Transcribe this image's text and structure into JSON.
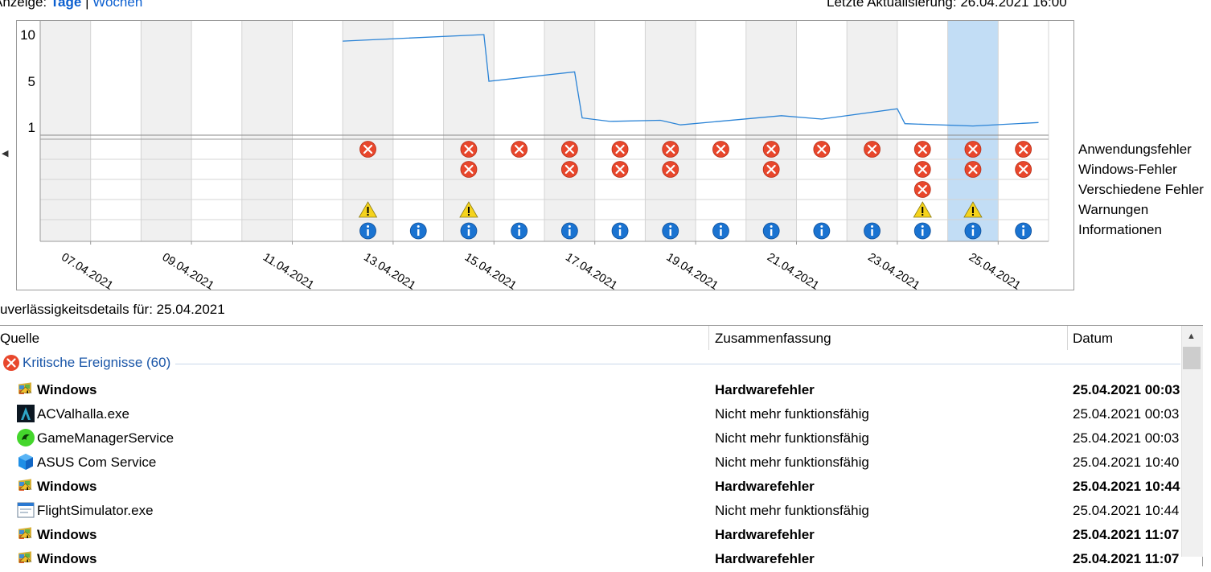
{
  "header": {
    "view_label": "Anzeige:",
    "view_days": "Tage",
    "view_sep": "|",
    "view_weeks": "Wochen",
    "last_update": "Letzte Aktualisierung: 26.04.2021 16:00"
  },
  "chart": {
    "y_ticks": [
      "10",
      "5",
      "1"
    ],
    "x_labels": [
      "07.04.2021",
      "09.04.2021",
      "11.04.2021",
      "13.04.2021",
      "15.04.2021",
      "17.04.2021",
      "19.04.2021",
      "21.04.2021",
      "23.04.2021",
      "25.04.2021"
    ],
    "day_count": 20,
    "shaded_days": [
      0,
      2,
      4,
      6,
      8,
      10,
      12,
      14,
      16
    ],
    "selected_day": 18,
    "stability_line": [
      [
        6,
        9.3
      ],
      [
        8.8,
        10.0
      ],
      [
        8.9,
        5.0
      ],
      [
        10.6,
        6.0
      ],
      [
        10.75,
        1.8
      ],
      [
        11.3,
        1.5
      ],
      [
        12.3,
        1.6
      ],
      [
        12.7,
        1.2
      ],
      [
        14.7,
        2.0
      ],
      [
        15.5,
        1.7
      ],
      [
        17,
        2.6
      ],
      [
        17.15,
        1.3
      ],
      [
        18.5,
        1.1
      ],
      [
        19.8,
        1.4
      ]
    ],
    "legend": [
      "Anwendungsfehler",
      "Windows-Fehler",
      "Verschiedene Fehler",
      "Warnungen",
      "Informationen"
    ],
    "events": {
      "app_errors": [
        6,
        8,
        9,
        10,
        11,
        12,
        13,
        14,
        15,
        16,
        17,
        18,
        19
      ],
      "windows_errors": [
        8,
        10,
        11,
        12,
        14,
        17,
        18,
        19
      ],
      "misc_errors": [
        17
      ],
      "warnings": [
        6,
        8,
        17,
        18
      ],
      "info": [
        6,
        7,
        8,
        9,
        10,
        11,
        12,
        13,
        14,
        15,
        16,
        17,
        18,
        19
      ]
    }
  },
  "details": {
    "title": "uverlässigkeitsdetails für: 25.04.2021",
    "columns": [
      "Quelle",
      "Zusammenfassung",
      "Datum"
    ],
    "group": {
      "label": "Kritische Ereignisse (60)"
    },
    "rows": [
      {
        "source": "Windows",
        "summary": "Hardwarefehler",
        "date": "25.04.2021 00:03",
        "bold": true,
        "icon": "windows-flag-icon"
      },
      {
        "source": "ACValhalla.exe",
        "summary": "Nicht mehr funktionsfähig",
        "date": "25.04.2021 00:03",
        "bold": false,
        "icon": "acvalhalla-icon"
      },
      {
        "source": "GameManagerService",
        "summary": "Nicht mehr funktionsfähig",
        "date": "25.04.2021 00:03",
        "bold": false,
        "icon": "razer-icon"
      },
      {
        "source": "ASUS Com Service",
        "summary": "Nicht mehr funktionsfähig",
        "date": "25.04.2021 10:40",
        "bold": false,
        "icon": "cube-icon"
      },
      {
        "source": "Windows",
        "summary": "Hardwarefehler",
        "date": "25.04.2021 10:44",
        "bold": true,
        "icon": "windows-flag-icon"
      },
      {
        "source": "FlightSimulator.exe",
        "summary": "Nicht mehr funktionsfähig",
        "date": "25.04.2021 10:44",
        "bold": false,
        "icon": "app-window-icon"
      },
      {
        "source": "Windows",
        "summary": "Hardwarefehler",
        "date": "25.04.2021 11:07",
        "bold": true,
        "icon": "windows-flag-icon"
      },
      {
        "source": "Windows",
        "summary": "Hardwarefehler",
        "date": "25.04.2021 11:07",
        "bold": true,
        "icon": "windows-flag-icon"
      }
    ]
  }
}
